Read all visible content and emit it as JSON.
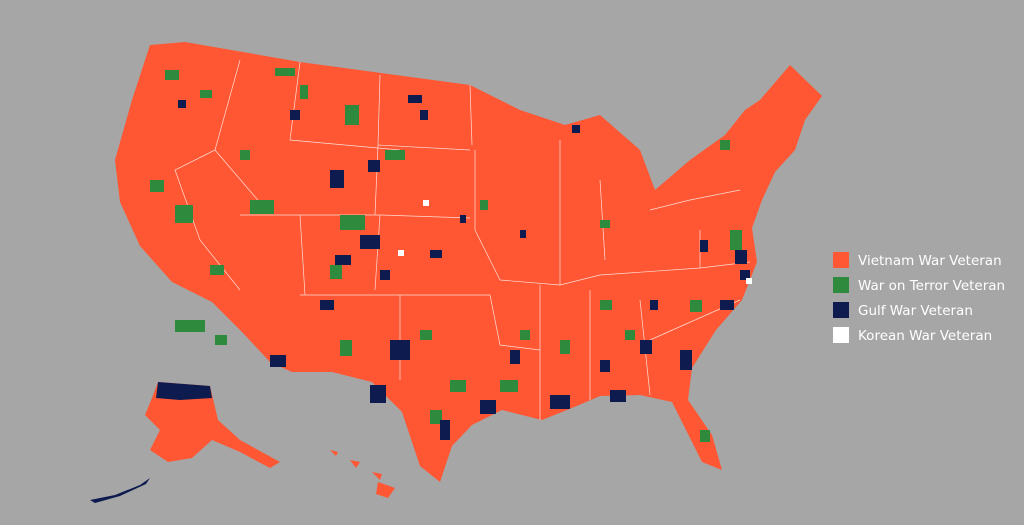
{
  "legend": {
    "items": [
      {
        "label": "Vietnam War Veteran",
        "color": "#ff5733"
      },
      {
        "label": "War on Terror Veteran",
        "color": "#2e8b3e"
      },
      {
        "label": "Gulf War Veteran",
        "color": "#0d1b4f"
      },
      {
        "label": "Korean War Veteran",
        "color": "#ffffff"
      }
    ]
  }
}
